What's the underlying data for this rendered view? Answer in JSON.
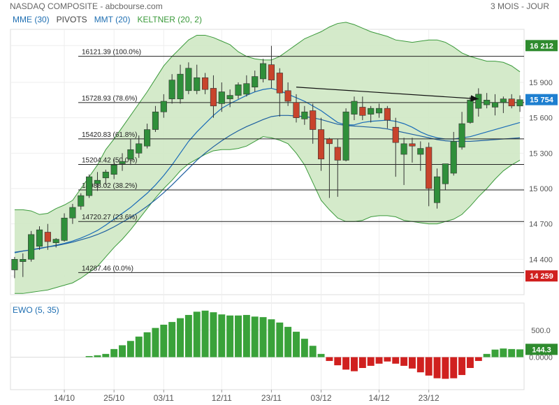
{
  "header": {
    "title": "NASDAQ COMPOSITE - abcbourse.com",
    "period": "3 MOIS - JOUR"
  },
  "legend": [
    {
      "label": "MME (30)",
      "color": "#1f6fb2"
    },
    {
      "label": "PIVOTS",
      "color": "#444444"
    },
    {
      "label": "MMT (20)",
      "color": "#1f6fb2"
    },
    {
      "label": "KELTNER (20, 2)",
      "color": "#3a9a3a"
    }
  ],
  "colors": {
    "up": "#2f8f3a",
    "down": "#c8442c",
    "band_fill": "#cfe8c4",
    "band_line": "#3b9a3b",
    "mme": "#1e5fa0",
    "mmt": "#1a6cb8",
    "badge_blue": "#1e7fd0",
    "badge_green": "#2e8b2e",
    "badge_red": "#d0201f",
    "ewo_green": "#3aa23a",
    "ewo_red": "#d0201f"
  },
  "chart_data": [
    {
      "type": "candlestick",
      "y_scale": "linear",
      "ylim": [
        14100,
        16350
      ],
      "y_ticks": [
        "16 212",
        "15 900",
        "15 600",
        "15 300",
        "15 000",
        "14 700",
        "14 400",
        "14 259"
      ],
      "x_tick_labels": [
        {
          "label": "14/10",
          "index": 6
        },
        {
          "label": "25/10",
          "index": 12
        },
        {
          "label": "03/11",
          "index": 18
        },
        {
          "label": "12/11",
          "index": 25
        },
        {
          "label": "23/11",
          "index": 31
        },
        {
          "label": "03/12",
          "index": 37
        },
        {
          "label": "14/12",
          "index": 44
        },
        {
          "label": "23/12",
          "index": 50
        }
      ],
      "fib_levels": [
        {
          "value": 16121.39,
          "label": "16121.39 (100.0%)"
        },
        {
          "value": 15728.93,
          "label": "15728.93 (78.6%)"
        },
        {
          "value": 15420.83,
          "label": "15420.83 (61.8%)"
        },
        {
          "value": 15204.42,
          "label": "15204.42 (50.0%)"
        },
        {
          "value": 14988.02,
          "label": "14988.02 (38.2%)"
        },
        {
          "value": 14720.27,
          "label": "14720.27 (23.6%)"
        },
        {
          "value": 14287.46,
          "label": "14287.46 (0.0%)"
        }
      ],
      "price_badges": [
        {
          "text": "16 212",
          "value": 16212,
          "color": "badge_green"
        },
        {
          "text": "15 754",
          "value": 15754,
          "color": "badge_blue"
        },
        {
          "text": "14 259",
          "value": 14259,
          "color": "badge_red"
        }
      ],
      "ohlc": [
        [
          14310,
          14420,
          14240,
          14400
        ],
        [
          14380,
          14450,
          14250,
          14400
        ],
        [
          14400,
          14640,
          14380,
          14610
        ],
        [
          14510,
          14680,
          14480,
          14650
        ],
        [
          14630,
          14700,
          14480,
          14550
        ],
        [
          14540,
          14580,
          14500,
          14570
        ],
        [
          14560,
          14790,
          14550,
          14750
        ],
        [
          14750,
          14870,
          14700,
          14840
        ],
        [
          14850,
          14960,
          14820,
          14940
        ],
        [
          14940,
          15120,
          14920,
          15100
        ],
        [
          15040,
          15140,
          14980,
          15070
        ],
        [
          15090,
          15160,
          15030,
          15140
        ],
        [
          15120,
          15250,
          15080,
          15200
        ],
        [
          15210,
          15300,
          15150,
          15230
        ],
        [
          15250,
          15420,
          15200,
          15330
        ],
        [
          15300,
          15450,
          15260,
          15380
        ],
        [
          15360,
          15550,
          15340,
          15500
        ],
        [
          15500,
          15700,
          15480,
          15650
        ],
        [
          15650,
          15800,
          15600,
          15740
        ],
        [
          15760,
          15970,
          15720,
          15920
        ],
        [
          15760,
          16050,
          15720,
          15970
        ],
        [
          15830,
          16070,
          15800,
          16020
        ],
        [
          15830,
          16050,
          15800,
          15940
        ],
        [
          15940,
          15980,
          15800,
          15840
        ],
        [
          15850,
          15960,
          15600,
          15700
        ],
        [
          15720,
          15900,
          15650,
          15820
        ],
        [
          15760,
          15840,
          15690,
          15790
        ],
        [
          15790,
          15900,
          15760,
          15880
        ],
        [
          15800,
          15960,
          15780,
          15890
        ],
        [
          15860,
          16000,
          15820,
          15950
        ],
        [
          15930,
          16100,
          15900,
          16060
        ],
        [
          16050,
          16210,
          15850,
          15920
        ],
        [
          15980,
          16020,
          15610,
          15810
        ],
        [
          15830,
          15900,
          15700,
          15740
        ],
        [
          15730,
          15800,
          15560,
          15600
        ],
        [
          15590,
          15700,
          15540,
          15650
        ],
        [
          15660,
          15720,
          15380,
          15500
        ],
        [
          15500,
          15600,
          15150,
          15250
        ],
        [
          15420,
          15430,
          14920,
          15380
        ],
        [
          15350,
          15420,
          14930,
          15240
        ],
        [
          15240,
          15680,
          15230,
          15650
        ],
        [
          15630,
          15780,
          15580,
          15740
        ],
        [
          15690,
          15780,
          15580,
          15620
        ],
        [
          15630,
          15700,
          15560,
          15680
        ],
        [
          15640,
          15720,
          15600,
          15680
        ],
        [
          15680,
          15700,
          15510,
          15580
        ],
        [
          15520,
          15600,
          15100,
          15390
        ],
        [
          15290,
          15430,
          15030,
          15380
        ],
        [
          15380,
          15430,
          15220,
          15360
        ],
        [
          15290,
          15400,
          15150,
          15340
        ],
        [
          15350,
          15390,
          14850,
          15000
        ],
        [
          14880,
          15170,
          14830,
          15100
        ],
        [
          15040,
          15210,
          14990,
          15210
        ],
        [
          15130,
          15480,
          15110,
          15400
        ],
        [
          15350,
          15650,
          15330,
          15550
        ],
        [
          15560,
          15780,
          15550,
          15750
        ],
        [
          15680,
          15850,
          15610,
          15800
        ],
        [
          15710,
          15810,
          15680,
          15750
        ],
        [
          15690,
          15800,
          15620,
          15730
        ],
        [
          15730,
          15780,
          15640,
          15760
        ],
        [
          15760,
          15800,
          15680,
          15700
        ],
        [
          15700,
          15790,
          15650,
          15754
        ]
      ],
      "keltner": {
        "upper": [
          14820,
          14820,
          14810,
          14780,
          14790,
          14830,
          14860,
          14900,
          15000,
          15100,
          15200,
          15330,
          15420,
          15520,
          15620,
          15720,
          15820,
          15930,
          16040,
          16120,
          16190,
          16260,
          16300,
          16300,
          16280,
          16250,
          16220,
          16160,
          16120,
          16100,
          16090,
          16090,
          16120,
          16170,
          16220,
          16270,
          16300,
          16330,
          16370,
          16400,
          16410,
          16390,
          16360,
          16330,
          16310,
          16290,
          16260,
          16250,
          16240,
          16250,
          16260,
          16260,
          16240,
          16200,
          16150,
          16120,
          16100,
          16080,
          16080,
          16070,
          16040,
          15990
        ],
        "lower": [
          14110,
          14110,
          14120,
          14130,
          14140,
          14160,
          14180,
          14200,
          14240,
          14290,
          14340,
          14420,
          14500,
          14570,
          14650,
          14740,
          14830,
          14920,
          15000,
          15070,
          15150,
          15210,
          15250,
          15290,
          15320,
          15330,
          15330,
          15340,
          15360,
          15400,
          15440,
          15430,
          15410,
          15380,
          15300,
          15200,
          15050,
          14900,
          14820,
          14750,
          14720,
          14720,
          14730,
          14760,
          14770,
          14770,
          14760,
          14730,
          14720,
          14710,
          14700,
          14700,
          14720,
          14740,
          14780,
          14850,
          14930,
          15000,
          15080,
          15150,
          15200,
          15240
        ]
      },
      "ma": {
        "mmt": [
          14455,
          14470,
          14480,
          14490,
          14505,
          14520,
          14535,
          14555,
          14580,
          14610,
          14645,
          14690,
          14740,
          14790,
          14840,
          14900,
          14960,
          15030,
          15110,
          15200,
          15300,
          15400,
          15480,
          15550,
          15620,
          15680,
          15720,
          15755,
          15790,
          15820,
          15840,
          15850,
          15830,
          15800,
          15770,
          15740,
          15700,
          15660,
          15610,
          15560,
          15540,
          15540,
          15560,
          15570,
          15575,
          15580,
          15570,
          15550,
          15520,
          15480,
          15450,
          15430,
          15420,
          15420,
          15430,
          15440,
          15460,
          15480,
          15500,
          15520,
          15540,
          15560
        ],
        "mme": [
          14460,
          14470,
          14480,
          14495,
          14505,
          14515,
          14530,
          14545,
          14565,
          14585,
          14610,
          14640,
          14675,
          14715,
          14755,
          14800,
          14850,
          14905,
          14965,
          15030,
          15100,
          15170,
          15240,
          15300,
          15355,
          15405,
          15450,
          15490,
          15525,
          15555,
          15585,
          15610,
          15620,
          15620,
          15615,
          15610,
          15600,
          15585,
          15565,
          15545,
          15535,
          15530,
          15525,
          15520,
          15515,
          15505,
          15490,
          15475,
          15460,
          15445,
          15430,
          15415,
          15405,
          15400,
          15400,
          15400,
          15405,
          15410,
          15415,
          15420,
          15425,
          15430
        ]
      },
      "arrow": {
        "from": [
          34,
          15860
        ],
        "to": [
          56,
          15760
        ]
      }
    },
    {
      "type": "bar",
      "title": "EWO (5, 35)",
      "ylim": [
        -600,
        1000
      ],
      "y_ticks": [
        "500.0",
        "0.0000"
      ],
      "badge": {
        "text": "144.3",
        "value": 144.3
      },
      "values": [
        0,
        0,
        0,
        0,
        0,
        0,
        0,
        0,
        0,
        20,
        35,
        60,
        150,
        220,
        300,
        380,
        460,
        540,
        600,
        650,
        720,
        780,
        840,
        860,
        830,
        790,
        770,
        770,
        780,
        750,
        740,
        700,
        640,
        560,
        470,
        340,
        210,
        60,
        -70,
        -150,
        -230,
        -260,
        -200,
        -160,
        -120,
        -80,
        -120,
        -160,
        -210,
        -280,
        -340,
        -390,
        -400,
        -390,
        -330,
        -200,
        -70,
        60,
        140,
        160,
        150,
        144.3
      ]
    }
  ]
}
